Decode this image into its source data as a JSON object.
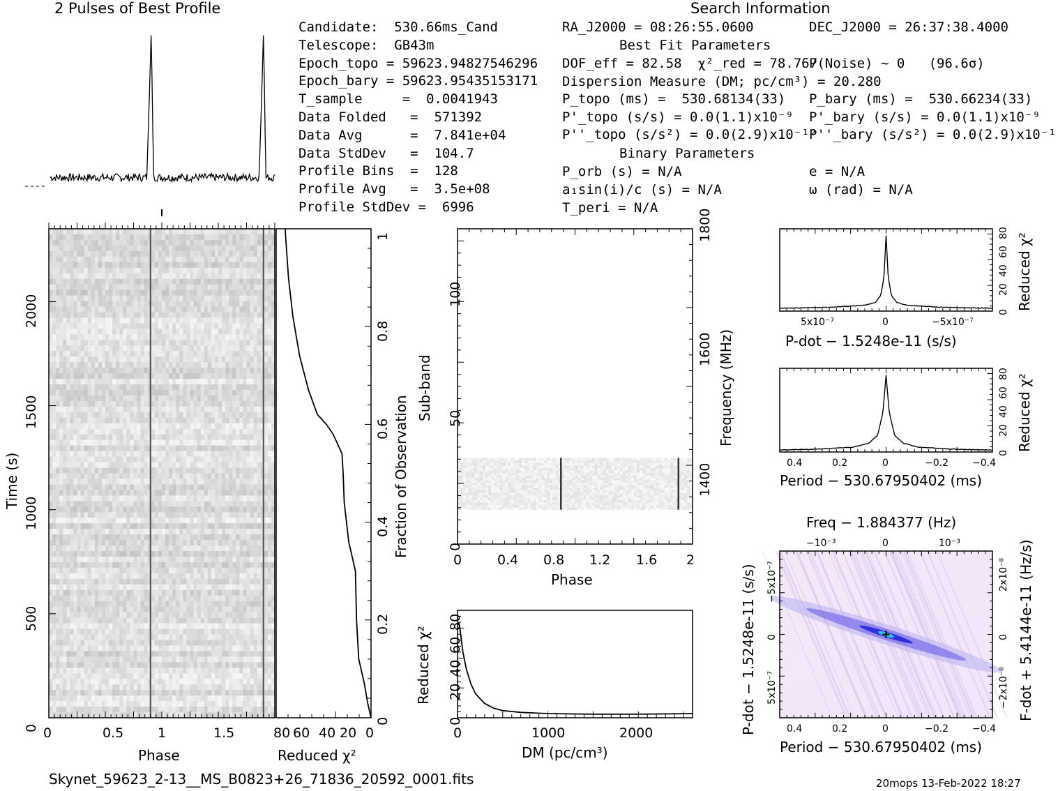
{
  "header": {
    "profile_title": "2 Pulses of Best Profile",
    "search_title": "Search Information"
  },
  "info_left": [
    "Candidate:  530.66ms_Cand",
    "Telescope:  GB43m",
    "Epoch_topo = 59623.94827546296",
    "Epoch_bary = 59623.95435153171",
    "T_sample     =  0.0041943",
    "Data Folded   =  571392",
    "Data Avg      =  7.841e+04",
    "Data StdDev   =  104.7",
    "Profile Bins  =  128",
    "Profile Avg   =  3.5e+08",
    "Profile StdDev =  6996"
  ],
  "info_mid": [
    "RA_J2000 = 08:26:55.0600",
    "Best Fit Parameters",
    "DOF_eff = 82.58  χ²_red = 78.767",
    "Dispersion Measure (DM; pc/cm³) = 20.280",
    "P_topo (ms) =  530.68134(33)",
    "P'_topo (s/s) = 0.0(1.1)x10⁻⁹",
    "P''_topo (s/s²) = 0.0(2.9)x10⁻¹²",
    "Binary Parameters",
    "P_orb (s) = N/A",
    "a₁sin(i)/c (s) = N/A",
    "T_peri = N/A"
  ],
  "info_right": [
    "DEC_J2000 = 26:37:38.4000",
    "P(Noise) ~ 0   (96.6σ)",
    "P_bary (ms) =  530.66234(33)",
    "P'_bary (s/s) = 0.0(1.1)x10⁻⁹",
    "P''_bary (s/s²) = 0.0(2.9)x10⁻¹²",
    "e = N/A",
    "ω (rad) = N/A"
  ],
  "footer": {
    "filename": "Skynet_59623_2-13__MS_B0823+26_71836_20592_0001.fits",
    "stamp": "20mops 13-Feb-2022 18:27"
  },
  "chart_data": [
    {
      "id": "profile",
      "type": "line",
      "title": "2 Pulses of Best Profile",
      "x": [
        0,
        0.86,
        0.88,
        0.9,
        0.92,
        1.0,
        1.86,
        1.88,
        1.9,
        1.92,
        2.0
      ],
      "values": [
        0.06,
        0.06,
        0.5,
        1.0,
        0.06,
        0.06,
        0.06,
        0.5,
        1.0,
        0.06,
        0.06
      ],
      "xlim": [
        0,
        2
      ]
    },
    {
      "id": "time-phase",
      "type": "heatmap",
      "xlabel": "Phase",
      "ylabel": "Time (s)",
      "ylabel_right": "Fraction of Observation",
      "x_ticks": [
        "0",
        "0.5",
        "1",
        "1.5"
      ],
      "y_ticks": [
        "0",
        "500",
        "1000",
        "1500",
        "2000"
      ],
      "y_right_ticks": [
        "0",
        "0.2",
        "0.4",
        "0.6",
        "0.8",
        "1"
      ],
      "xlim": [
        0,
        2
      ],
      "ylim": [
        0,
        2350
      ],
      "pulse_phases": [
        0.9,
        1.9
      ]
    },
    {
      "id": "chi2-vs-time",
      "type": "line",
      "xlabel": "Reduced χ²",
      "x_ticks": [
        "80",
        "60",
        "40",
        "20",
        "0"
      ],
      "xlim": [
        85,
        0
      ],
      "ylim": [
        0,
        1
      ],
      "x": [
        0,
        3,
        6,
        9,
        11,
        13,
        14,
        20,
        22,
        24,
        25,
        26,
        30,
        34,
        40,
        48,
        56,
        64,
        70,
        74,
        77
      ],
      "y": [
        0,
        0.03,
        0.07,
        0.1,
        0.12,
        0.2,
        0.3,
        0.36,
        0.4,
        0.44,
        0.5,
        0.54,
        0.56,
        0.58,
        0.6,
        0.62,
        0.67,
        0.74,
        0.82,
        0.9,
        1.0
      ]
    },
    {
      "id": "subband-phase",
      "type": "heatmap",
      "xlabel": "Phase",
      "ylabel": "Sub-band",
      "ylabel_right": "Frequency (MHz)",
      "x_ticks": [
        "0",
        "0.4",
        "0.8",
        "1.2",
        "1.6",
        "2"
      ],
      "y_ticks": [
        "0",
        "50",
        "100"
      ],
      "y_right_ticks": [
        "1400",
        "1600",
        "1800"
      ],
      "xlim": [
        0,
        2
      ],
      "ylim": [
        0,
        128
      ],
      "active_subbands": [
        14,
        35
      ],
      "pulse_phases": [
        0.88,
        1.88
      ]
    },
    {
      "id": "chi2-vs-dm",
      "type": "line",
      "xlabel": "DM (pc/cm³)",
      "ylabel": "Reduced χ²",
      "x_ticks": [
        "0",
        "1000",
        "2000"
      ],
      "y_ticks": [
        "0",
        "20",
        "40",
        "60",
        "80"
      ],
      "xlim": [
        0,
        2600
      ],
      "ylim": [
        0,
        90
      ],
      "x": [
        0,
        20,
        60,
        100,
        150,
        200,
        300,
        400,
        500,
        700,
        1000,
        1500,
        2000,
        2600
      ],
      "values": [
        80,
        78.8,
        55,
        40,
        28,
        20,
        12,
        8,
        6,
        4.5,
        3.5,
        3,
        3,
        3.5
      ]
    },
    {
      "id": "pdot",
      "type": "line",
      "xlabel": "P-dot − 1.5248e-11 (s/s)",
      "ylabel_right": "Reduced χ²",
      "x_ticks": [
        "5x10⁻⁷",
        "0",
        "−5x10⁻⁷"
      ],
      "y_ticks": [
        "0",
        "20",
        "40",
        "60",
        "80"
      ],
      "xlim": [
        1e-06,
        -1e-06
      ],
      "ylim": [
        0,
        85
      ],
      "x": [
        1e-06,
        5e-07,
        2e-07,
        1e-07,
        5e-08,
        2e-08,
        0,
        -2e-08,
        -5e-08,
        -1e-07,
        -2e-07,
        -5e-07,
        -1e-06
      ],
      "values": [
        3,
        4,
        6,
        9,
        16,
        35,
        78,
        35,
        16,
        9,
        6,
        4,
        3
      ]
    },
    {
      "id": "period",
      "type": "line",
      "xlabel": "Period − 530.67950402 (ms)",
      "ylabel_right": "Reduced χ²",
      "x_ticks": [
        "0.4",
        "0.2",
        "0",
        "−0.2",
        "−0.4"
      ],
      "y_ticks": [
        "0",
        "20",
        "40",
        "60",
        "80"
      ],
      "xlim": [
        0.5,
        -0.5
      ],
      "ylim": [
        0,
        85
      ],
      "x": [
        0.5,
        0.3,
        0.15,
        0.08,
        0.04,
        0.015,
        0,
        -0.015,
        -0.04,
        -0.08,
        -0.15,
        -0.3,
        -0.5
      ],
      "values": [
        2,
        3,
        5,
        9,
        17,
        40,
        78,
        40,
        17,
        9,
        5,
        3,
        2
      ]
    },
    {
      "id": "p-pdot",
      "type": "heatmap",
      "title": "Freq − 1.884377 (Hz)",
      "xlabel": "Period − 530.67950402 (ms)",
      "ylabel": "P-dot − 1.5248e-11 (s/s)",
      "ylabel_right": "F-dot + 5.4144e-11 (Hz/s)",
      "x_ticks": [
        "0.4",
        "0.2",
        "0",
        "−0.2",
        "−0.4"
      ],
      "top_ticks": [
        "−10⁻³",
        "0",
        "10⁻³"
      ],
      "y_ticks": [
        "−5x10⁻⁷",
        "0",
        "5x10⁻⁷"
      ],
      "y_right_ticks": [
        "2x10⁻⁸",
        "0",
        "−2x10⁻⁸"
      ],
      "xlim": [
        0.5,
        -0.5
      ],
      "ylim": [
        1e-06,
        -1e-06
      ],
      "best": [
        0,
        0
      ]
    }
  ]
}
